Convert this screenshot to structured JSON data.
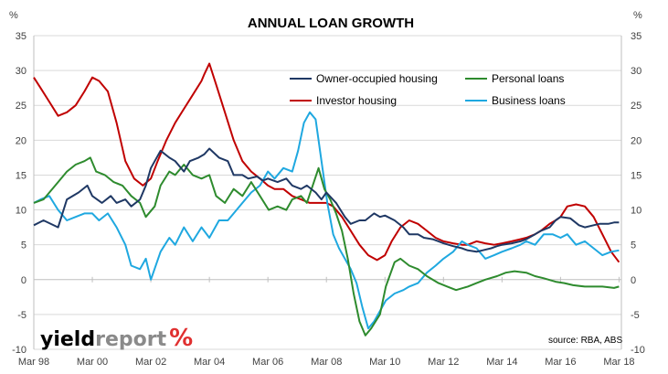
{
  "chart_data": {
    "type": "line",
    "title": "ANNUAL LOAN GROWTH",
    "ylabel_left": "%",
    "ylabel_right": "%",
    "ylim": [
      -10,
      35
    ],
    "yticks": [
      -10,
      -5,
      0,
      5,
      10,
      15,
      20,
      25,
      30,
      35
    ],
    "xlim": [
      1998.17,
      2018.25
    ],
    "xticks": [
      {
        "label": "Mar 98",
        "value": 1998.17
      },
      {
        "label": "Mar 00",
        "value": 2000.17
      },
      {
        "label": "Mar 02",
        "value": 2002.17
      },
      {
        "label": "Mar 04",
        "value": 2004.17
      },
      {
        "label": "Mar 06",
        "value": 2006.17
      },
      {
        "label": "Mar 08",
        "value": 2008.17
      },
      {
        "label": "Mar 10",
        "value": 2010.17
      },
      {
        "label": "Mar 12",
        "value": 2012.17
      },
      {
        "label": "Mar 14",
        "value": 2014.17
      },
      {
        "label": "Mar 16",
        "value": 2016.17
      },
      {
        "label": "Mar 18",
        "value": 2018.17
      }
    ],
    "grid": {
      "horizontal": true,
      "vertical": false
    },
    "legend_position": "top-center",
    "source": "source: RBA, ABS",
    "series": [
      {
        "name": "Owner-occupied housing",
        "color": "#1f3864",
        "x": [
          1998.17,
          1998.5,
          1999.0,
          1999.3,
          1999.7,
          2000.0,
          2000.17,
          2000.5,
          2000.8,
          2001.0,
          2001.3,
          2001.5,
          2001.8,
          2002.0,
          2002.17,
          2002.5,
          2002.8,
          2003.0,
          2003.3,
          2003.5,
          2003.8,
          2004.0,
          2004.17,
          2004.5,
          2004.8,
          2005.0,
          2005.3,
          2005.5,
          2005.8,
          2006.0,
          2006.17,
          2006.5,
          2006.8,
          2007.0,
          2007.3,
          2007.5,
          2007.8,
          2008.0,
          2008.17,
          2008.5,
          2008.8,
          2009.0,
          2009.3,
          2009.5,
          2009.8,
          2010.0,
          2010.17,
          2010.5,
          2010.8,
          2011.0,
          2011.3,
          2011.5,
          2011.8,
          2012.0,
          2012.17,
          2012.5,
          2012.8,
          2013.0,
          2013.3,
          2013.5,
          2013.8,
          2014.0,
          2014.17,
          2014.5,
          2014.8,
          2015.0,
          2015.3,
          2015.5,
          2015.8,
          2016.0,
          2016.17,
          2016.5,
          2016.8,
          2017.0,
          2017.3,
          2017.5,
          2017.8,
          2018.0,
          2018.17
        ],
        "values": [
          7.8,
          8.5,
          7.5,
          11.5,
          12.5,
          13.5,
          12.0,
          11.0,
          12.0,
          11.0,
          11.5,
          10.5,
          11.5,
          13.5,
          16.0,
          18.5,
          17.5,
          17.0,
          15.5,
          17.0,
          17.5,
          18.0,
          18.8,
          17.5,
          17.0,
          15.0,
          15.0,
          14.5,
          14.8,
          14.2,
          14.5,
          14.0,
          14.5,
          13.5,
          13.0,
          13.5,
          12.5,
          11.5,
          12.5,
          11.0,
          9.0,
          8.0,
          8.5,
          8.5,
          9.5,
          9.0,
          9.2,
          8.5,
          7.5,
          6.5,
          6.5,
          6.0,
          5.8,
          5.5,
          5.2,
          4.8,
          4.5,
          4.2,
          4.0,
          4.2,
          4.5,
          4.8,
          5.0,
          5.2,
          5.5,
          5.8,
          6.5,
          7.0,
          7.5,
          8.5,
          9.0,
          8.8,
          7.8,
          7.5,
          7.8,
          8.0,
          8.0,
          8.2,
          8.2
        ]
      },
      {
        "name": "Personal loans",
        "color": "#2e8b2e",
        "x": [
          1998.17,
          1998.5,
          1999.0,
          1999.3,
          1999.6,
          1999.9,
          2000.1,
          2000.3,
          2000.6,
          2000.9,
          2001.2,
          2001.5,
          2001.8,
          2002.0,
          2002.3,
          2002.5,
          2002.8,
          2003.0,
          2003.3,
          2003.6,
          2003.9,
          2004.17,
          2004.4,
          2004.7,
          2005.0,
          2005.3,
          2005.6,
          2005.9,
          2006.2,
          2006.5,
          2006.8,
          2007.0,
          2007.3,
          2007.5,
          2007.7,
          2007.9,
          2008.1,
          2008.3,
          2008.5,
          2008.7,
          2008.9,
          2009.1,
          2009.3,
          2009.5,
          2009.7,
          2010.0,
          2010.2,
          2010.5,
          2010.7,
          2011.0,
          2011.3,
          2011.6,
          2012.0,
          2012.3,
          2012.6,
          2013.0,
          2013.3,
          2013.6,
          2014.0,
          2014.3,
          2014.6,
          2015.0,
          2015.3,
          2015.6,
          2016.0,
          2016.3,
          2016.6,
          2017.0,
          2017.3,
          2017.6,
          2018.0,
          2018.17
        ],
        "values": [
          11.0,
          11.5,
          14.0,
          15.5,
          16.5,
          17.0,
          17.5,
          15.5,
          15.0,
          14.0,
          13.5,
          12.0,
          11.0,
          9.0,
          10.5,
          13.5,
          15.5,
          15.0,
          16.5,
          15.0,
          14.5,
          15.0,
          12.0,
          11.0,
          13.0,
          12.0,
          14.0,
          12.0,
          10.0,
          10.5,
          10.0,
          11.5,
          12.0,
          11.0,
          13.5,
          16.0,
          13.0,
          11.5,
          9.5,
          7.0,
          3.0,
          -2.0,
          -6.0,
          -8.0,
          -7.0,
          -5.0,
          -1.0,
          2.5,
          3.0,
          2.0,
          1.5,
          0.5,
          -0.5,
          -1.0,
          -1.5,
          -1.0,
          -0.5,
          0.0,
          0.5,
          1.0,
          1.2,
          1.0,
          0.5,
          0.2,
          -0.3,
          -0.5,
          -0.8,
          -1.0,
          -1.0,
          -1.0,
          -1.2,
          -1.0
        ]
      },
      {
        "name": "Investor housing",
        "color": "#c00000",
        "x": [
          1998.17,
          1998.4,
          1998.7,
          1999.0,
          1999.3,
          1999.6,
          1999.9,
          2000.17,
          2000.4,
          2000.7,
          2001.0,
          2001.3,
          2001.6,
          2001.9,
          2002.17,
          2002.4,
          2002.7,
          2003.0,
          2003.3,
          2003.6,
          2003.9,
          2004.0,
          2004.17,
          2004.4,
          2004.7,
          2005.0,
          2005.3,
          2005.6,
          2005.9,
          2006.17,
          2006.4,
          2006.7,
          2007.0,
          2007.3,
          2007.6,
          2007.9,
          2008.17,
          2008.4,
          2008.7,
          2009.0,
          2009.3,
          2009.6,
          2009.9,
          2010.17,
          2010.4,
          2010.7,
          2011.0,
          2011.3,
          2011.6,
          2011.9,
          2012.17,
          2012.5,
          2012.8,
          2013.0,
          2013.3,
          2013.6,
          2013.9,
          2014.17,
          2014.5,
          2014.8,
          2015.0,
          2015.3,
          2015.5,
          2015.8,
          2016.0,
          2016.17,
          2016.4,
          2016.7,
          2017.0,
          2017.3,
          2017.6,
          2017.9,
          2018.17
        ],
        "values": [
          29.0,
          27.5,
          25.5,
          23.5,
          24.0,
          25.0,
          27.0,
          29.0,
          28.5,
          27.0,
          22.5,
          17.0,
          14.5,
          13.5,
          14.5,
          17.0,
          20.0,
          22.5,
          24.5,
          26.5,
          28.5,
          29.5,
          31.0,
          28.0,
          24.0,
          20.0,
          17.0,
          15.5,
          14.5,
          13.5,
          13.0,
          13.0,
          12.0,
          11.5,
          11.0,
          11.0,
          11.0,
          10.5,
          9.0,
          7.0,
          5.0,
          3.5,
          2.8,
          3.5,
          5.5,
          7.5,
          8.5,
          8.0,
          7.0,
          6.0,
          5.5,
          5.2,
          5.0,
          5.0,
          5.5,
          5.2,
          5.0,
          5.2,
          5.5,
          5.8,
          6.0,
          6.5,
          7.0,
          8.0,
          8.5,
          9.0,
          10.5,
          10.8,
          10.5,
          9.0,
          6.5,
          4.0,
          2.5
        ]
      },
      {
        "name": "Business loans",
        "color": "#1fa8e0",
        "x": [
          1998.17,
          1998.4,
          1998.7,
          1999.0,
          1999.3,
          1999.6,
          1999.9,
          2000.17,
          2000.4,
          2000.7,
          2001.0,
          2001.3,
          2001.5,
          2001.8,
          2002.0,
          2002.17,
          2002.5,
          2002.8,
          2003.0,
          2003.3,
          2003.6,
          2003.9,
          2004.17,
          2004.5,
          2004.8,
          2005.0,
          2005.3,
          2005.6,
          2005.9,
          2006.17,
          2006.4,
          2006.7,
          2007.0,
          2007.2,
          2007.4,
          2007.6,
          2007.8,
          2008.0,
          2008.2,
          2008.4,
          2008.6,
          2008.8,
          2009.0,
          2009.2,
          2009.4,
          2009.6,
          2009.8,
          2010.0,
          2010.2,
          2010.5,
          2010.8,
          2011.0,
          2011.3,
          2011.6,
          2011.9,
          2012.17,
          2012.5,
          2012.8,
          2013.0,
          2013.3,
          2013.6,
          2013.9,
          2014.17,
          2014.5,
          2014.8,
          2015.0,
          2015.3,
          2015.6,
          2015.9,
          2016.17,
          2016.4,
          2016.7,
          2017.0,
          2017.3,
          2017.6,
          2017.9,
          2018.17
        ],
        "values": [
          11.0,
          11.5,
          12.0,
          10.0,
          8.5,
          9.0,
          9.5,
          9.5,
          8.5,
          9.5,
          7.5,
          5.0,
          2.0,
          1.5,
          3.0,
          0.0,
          4.0,
          6.0,
          5.0,
          7.5,
          5.5,
          7.5,
          6.0,
          8.5,
          8.5,
          9.5,
          11.0,
          12.5,
          13.5,
          15.5,
          14.5,
          16.0,
          15.5,
          18.5,
          22.5,
          24.0,
          23.0,
          17.0,
          11.0,
          6.5,
          4.5,
          3.0,
          1.5,
          -0.5,
          -4.0,
          -7.0,
          -6.0,
          -4.5,
          -3.0,
          -2.0,
          -1.5,
          -1.0,
          -0.5,
          1.0,
          2.0,
          3.0,
          4.0,
          5.5,
          5.0,
          4.5,
          3.0,
          3.5,
          4.0,
          4.5,
          5.0,
          5.5,
          5.0,
          6.5,
          6.5,
          6.0,
          6.5,
          5.0,
          5.5,
          4.5,
          3.5,
          4.0,
          4.2
        ]
      }
    ]
  },
  "branding": {
    "logo_yield": "yield",
    "logo_report": "report",
    "logo_percent": "%"
  }
}
